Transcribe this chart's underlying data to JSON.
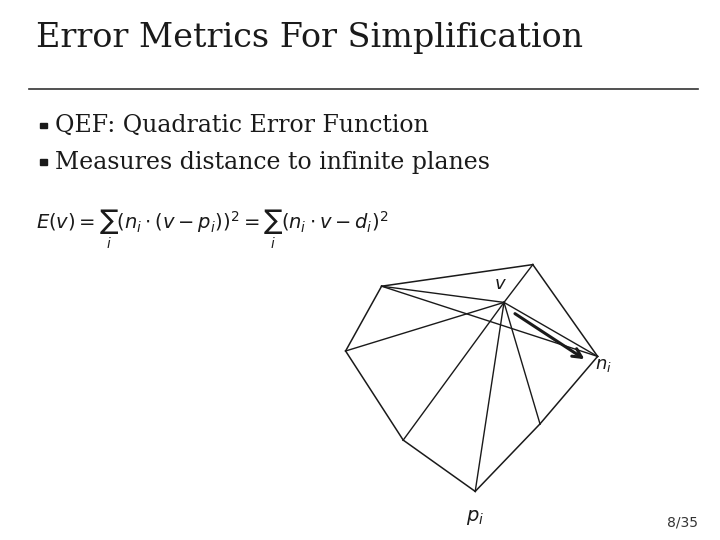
{
  "title": "Error Metrics For Simplification",
  "title_fontsize": 24,
  "title_color": "#1a1a1a",
  "background_color": "#ffffff",
  "bullet1": "QEF: Quadratic Error Function",
  "bullet2": "Measures distance to infinite planes",
  "bullet_fontsize": 17,
  "bullet_color": "#1a1a1a",
  "formula_fontsize": 14,
  "slide_number": "8/35",
  "slide_number_fontsize": 10,
  "line_color": "#333333",
  "shape_color": "#1a1a1a"
}
